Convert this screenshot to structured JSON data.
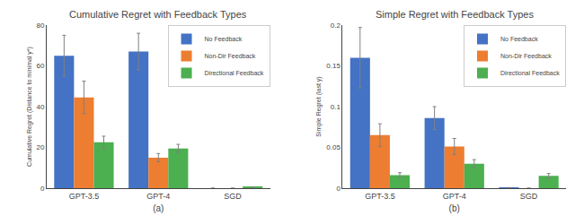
{
  "chart_data": [
    {
      "type": "bar",
      "title": "Cumulative Regret with Feedback Types",
      "categories": [
        "GPT-3.5",
        "GPT-4",
        "SGD"
      ],
      "series": [
        {
          "name": "No Feedback",
          "color": "#4472c4",
          "values": [
            65.0,
            67.0,
            0.0
          ],
          "errors": [
            10.0,
            9.0,
            0.0
          ]
        },
        {
          "name": "Non-Dir Feedback",
          "color": "#ed7d31",
          "values": [
            44.5,
            15.0,
            0.0
          ],
          "errors": [
            8.0,
            2.0,
            0.0
          ]
        },
        {
          "name": "Directional Feedback",
          "color": "#4caf50",
          "values": [
            22.5,
            19.5,
            0.5
          ],
          "errors": [
            3.0,
            2.0,
            0.15
          ]
        }
      ],
      "xlabel": "(a)",
      "ylabel": "Cumulative Regret (Distance to minimal y*)",
      "ylim": [
        0,
        80
      ],
      "yticks": [
        0,
        20,
        40,
        60,
        80
      ],
      "grid": false,
      "legend": "upper right"
    },
    {
      "type": "bar",
      "title": "Simple Regret with Feedback Types",
      "categories": [
        "GPT-3.5",
        "GPT-4",
        "SGD"
      ],
      "series": [
        {
          "name": "No Feedback",
          "color": "#4472c4",
          "values": [
            0.16,
            0.086,
            0.0005
          ],
          "errors": [
            0.037,
            0.014,
            0.0003
          ]
        },
        {
          "name": "Non-Dir Feedback",
          "color": "#ed7d31",
          "values": [
            0.065,
            0.051,
            0.0
          ],
          "errors": [
            0.014,
            0.01,
            0.0
          ]
        },
        {
          "name": "Directional Feedback",
          "color": "#4caf50",
          "values": [
            0.016,
            0.03,
            0.015
          ],
          "errors": [
            0.003,
            0.005,
            0.003
          ]
        }
      ],
      "xlabel": "(b)",
      "ylabel": "Simple Regret (last y)",
      "ylim": [
        0,
        0.2
      ],
      "yticks": [
        0,
        0.05,
        0.1,
        0.15,
        0.2
      ],
      "grid": false,
      "legend": "upper right"
    }
  ]
}
